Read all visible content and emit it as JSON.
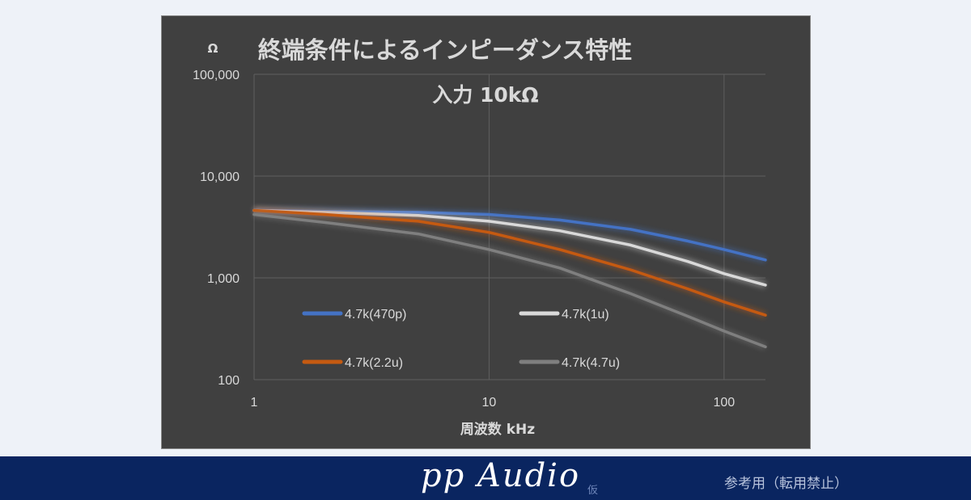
{
  "chart_data": {
    "type": "line",
    "title": "終端条件によるインピーダンス特性",
    "subtitle": "入力 10kΩ",
    "xlabel": "周波数 kHz",
    "ylabel": "Ω",
    "x_scale": "log",
    "y_scale": "log",
    "xlim": [
      1,
      150
    ],
    "ylim": [
      100,
      100000
    ],
    "x_ticks": [
      1,
      10,
      100
    ],
    "x_tick_labels": [
      "1",
      "10",
      "100"
    ],
    "y_ticks": [
      100,
      1000,
      10000,
      100000
    ],
    "y_tick_labels": [
      "100",
      "1,000",
      "10,000",
      "100,000"
    ],
    "grid": true,
    "legend_position": "inside-lower",
    "series": [
      {
        "name": "4.7k(470p)",
        "color": "#4472c4",
        "x": [
          1,
          2,
          5,
          10,
          20,
          40,
          70,
          100,
          150
        ],
        "y": [
          4600,
          4500,
          4400,
          4200,
          3700,
          3000,
          2300,
          1900,
          1500
        ]
      },
      {
        "name": "4.7k(1u)",
        "color": "#d9d9d9",
        "x": [
          1,
          2,
          5,
          10,
          20,
          40,
          70,
          100,
          150
        ],
        "y": [
          4600,
          4400,
          4100,
          3600,
          2900,
          2100,
          1450,
          1100,
          850
        ]
      },
      {
        "name": "4.7k(2.2u)",
        "color": "#c55a11",
        "x": [
          1,
          2,
          5,
          10,
          20,
          40,
          70,
          100,
          150
        ],
        "y": [
          4600,
          4200,
          3600,
          2800,
          1900,
          1200,
          780,
          580,
          430
        ]
      },
      {
        "name": "4.7k(4.7u)",
        "color": "#7f7f7f",
        "x": [
          1,
          2,
          5,
          10,
          20,
          40,
          70,
          100,
          150
        ],
        "y": [
          4200,
          3500,
          2700,
          1900,
          1250,
          700,
          420,
          300,
          210
        ]
      }
    ]
  },
  "footer": {
    "brand": "pp Audio",
    "brand_suffix": "仮",
    "notice": "参考用（転用禁止）"
  },
  "colors": {
    "plot_background": "#404040",
    "grid": "#5f5f5f",
    "text": "#d9d9d9",
    "footer_background": "#0a2560"
  }
}
